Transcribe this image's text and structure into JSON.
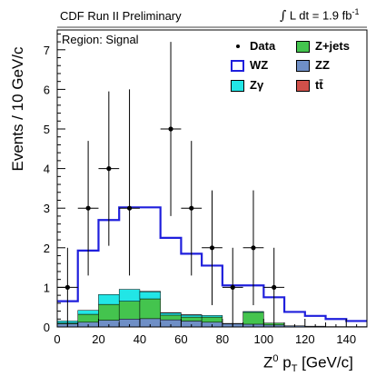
{
  "header": {
    "experiment": "CDF Run II Preliminary",
    "lumi_prefix": "L dt = 1.9 fb",
    "lumi_exp": "-1"
  },
  "region_label": "Region: Signal",
  "axis": {
    "x_main": "Z",
    "x_sup": "0",
    "x_p": " p",
    "x_sub": "T",
    "x_units": " [GeV/c]",
    "y": "Events / 10 GeV/c"
  },
  "legend": {
    "data": "Data",
    "wz": "WZ",
    "zgamma": "Zγ",
    "zjets": "Z+jets",
    "zz": "ZZ",
    "ttbar": "tt̄"
  },
  "colors": {
    "wz": "#1f1fdc",
    "zgamma": "#22e6e6",
    "zjets": "#44c44e",
    "zz": "#6f8fc6",
    "ttbar": "#d0504a"
  },
  "chart_data": {
    "type": "area",
    "xlabel": "Z0 pT [GeV/c]",
    "ylabel": "Events / 10 GeV/c",
    "xlim": [
      0,
      150
    ],
    "ylim": [
      0,
      7.5
    ],
    "xticks": [
      "0",
      "20",
      "40",
      "60",
      "80",
      "100",
      "120",
      "140"
    ],
    "yticks": [
      "0",
      "1",
      "2",
      "3",
      "4",
      "5",
      "6",
      "7"
    ],
    "bin_edges": [
      0,
      10,
      20,
      30,
      40,
      50,
      60,
      70,
      80,
      90,
      100,
      110,
      120,
      130,
      140,
      150
    ],
    "stacked_series": [
      {
        "name": "ZZ",
        "values": [
          0.08,
          0.12,
          0.17,
          0.2,
          0.21,
          0.18,
          0.15,
          0.12,
          0.08,
          0.07,
          0.05,
          0.03,
          0.02,
          0.01,
          0.01
        ]
      },
      {
        "name": "Z+jets",
        "values": [
          0.02,
          0.2,
          0.4,
          0.45,
          0.5,
          0.12,
          0.1,
          0.13,
          0.0,
          0.3,
          0.05,
          0.0,
          0.0,
          0.0,
          0.0
        ]
      },
      {
        "name": "Zγ",
        "values": [
          0.05,
          0.1,
          0.25,
          0.3,
          0.18,
          0.05,
          0.05,
          0.04,
          0.01,
          0.02,
          0.0,
          0.0,
          0.0,
          0.0,
          0.0
        ]
      },
      {
        "name": "tt̄",
        "values": [
          0,
          0,
          0,
          0,
          0.01,
          0.01,
          0.01,
          0,
          0,
          0,
          0,
          0,
          0,
          0,
          0
        ]
      }
    ],
    "wz_outline": [
      0.65,
      1.93,
      2.7,
      3.02,
      3.02,
      2.25,
      1.85,
      1.55,
      1.05,
      1.05,
      0.75,
      0.38,
      0.28,
      0.2,
      0.15
    ],
    "data_points": [
      {
        "x": 5,
        "y": 1,
        "err_lo": 1,
        "err_hi": 1
      },
      {
        "x": 15,
        "y": 3,
        "err_lo": 1.7,
        "err_hi": 1.7
      },
      {
        "x": 25,
        "y": 4,
        "err_lo": 1.95,
        "err_hi": 1.95
      },
      {
        "x": 35,
        "y": 3,
        "err_lo": 1.7,
        "err_hi": 3
      },
      {
        "x": 55,
        "y": 5,
        "err_lo": 2.2,
        "err_hi": 2.2
      },
      {
        "x": 65,
        "y": 3,
        "err_lo": 1.7,
        "err_hi": 1.7
      },
      {
        "x": 75,
        "y": 2,
        "err_lo": 1.45,
        "err_hi": 1.45
      },
      {
        "x": 85,
        "y": 1,
        "err_lo": 1,
        "err_hi": 1
      },
      {
        "x": 95,
        "y": 2,
        "err_lo": 1.45,
        "err_hi": 1.45
      },
      {
        "x": 105,
        "y": 1,
        "err_lo": 1,
        "err_hi": 1
      }
    ]
  }
}
